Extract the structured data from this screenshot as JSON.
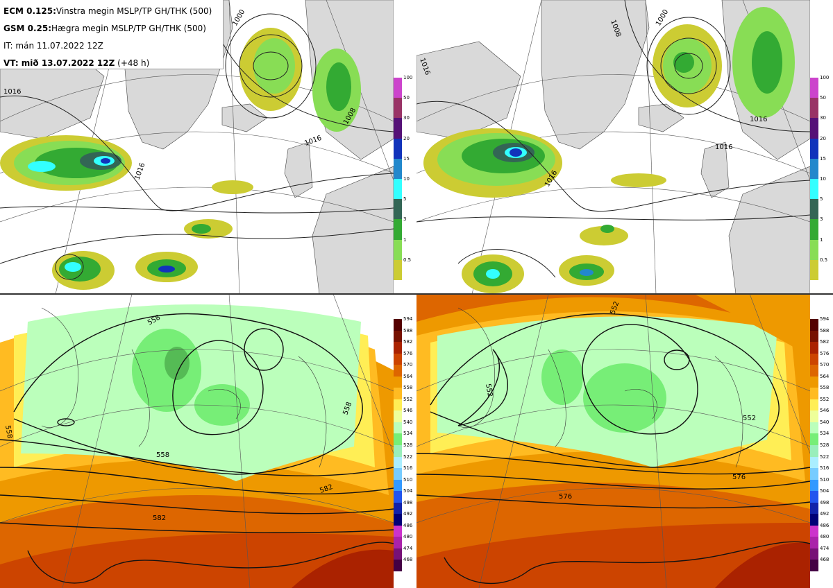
{
  "info": {
    "line1_bold": "ECM 0.125:",
    "line1_text": "Vinstra megin MSLP/TP GH/THK (500)",
    "line2_bold": "GSM 0.25:",
    "line2_text": "Hægra megin MSLP/TP GH/THK (500)",
    "line3_text": "IT: mán 11.07.2022 12Z",
    "line4_bold": "VT: mið 13.07.2022 12Z",
    "line4_text": " (+48 h)"
  },
  "precip_scale": {
    "ticks": [
      "100",
      "50",
      "30",
      "20",
      "15",
      "10",
      "5",
      "3",
      "1",
      "0.5"
    ],
    "colors": [
      "#cc44cc",
      "#993366",
      "#551177",
      "#1133bb",
      "#2288cc",
      "#33ffff",
      "#336655",
      "#33aa33",
      "#88dd55",
      "#cccc33"
    ]
  },
  "thickness_scale": {
    "ticks": [
      "594",
      "588",
      "582",
      "576",
      "570",
      "564",
      "558",
      "552",
      "546",
      "540",
      "534",
      "528",
      "522",
      "516",
      "510",
      "504",
      "498",
      "492",
      "486",
      "480",
      "474",
      "468"
    ],
    "colors": [
      "#550000",
      "#771100",
      "#aa2200",
      "#cc4400",
      "#dd6600",
      "#ee9900",
      "#ffbb22",
      "#ffee55",
      "#eeff99",
      "#bbffbb",
      "#77ee77",
      "#99eebb",
      "#aaeeff",
      "#77ccff",
      "#3399ff",
      "#2255ee",
      "#1122aa",
      "#000077",
      "#cc33cc",
      "#aa22aa",
      "#771177",
      "#440044"
    ]
  },
  "maps": {
    "top_left_labels": [
      "1000",
      "1016",
      "1016",
      "1016",
      "1008"
    ],
    "top_right_labels": [
      "1000",
      "1016",
      "1016",
      "1016",
      "1008",
      "1016"
    ],
    "bottom_left_labels": [
      "558",
      "558",
      "558",
      "582",
      "582",
      "558"
    ],
    "bottom_right_labels": [
      "552",
      "552",
      "576",
      "552",
      "576"
    ]
  }
}
